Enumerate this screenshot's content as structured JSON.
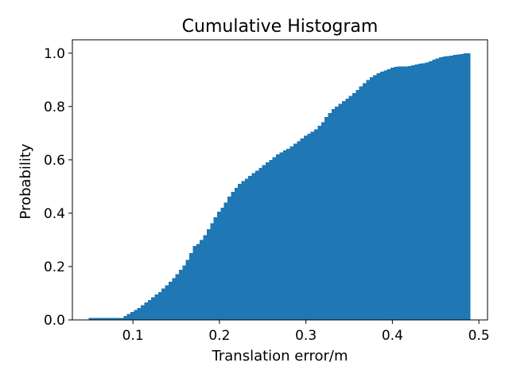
{
  "chart_data": {
    "type": "bar",
    "subtype": "cumulative-histogram",
    "title": "Cumulative Histogram",
    "xlabel": "Translation error/m",
    "ylabel": "Probability",
    "xlim": [
      0.03,
      0.51
    ],
    "ylim": [
      0.0,
      1.05
    ],
    "xticks": [
      "0.1",
      "0.2",
      "0.3",
      "0.4",
      "0.5"
    ],
    "xtick_values": [
      0.1,
      0.2,
      0.3,
      0.4,
      0.5
    ],
    "yticks": [
      "0.0",
      "0.2",
      "0.4",
      "0.6",
      "0.8",
      "1.0"
    ],
    "ytick_values": [
      0.0,
      0.2,
      0.4,
      0.6,
      0.8,
      1.0
    ],
    "bin_range": [
      0.049,
      0.49
    ],
    "grid": false,
    "legend": "none",
    "color": "#1f77b4",
    "values": [
      0.008,
      0.008,
      0.008,
      0.008,
      0.008,
      0.008,
      0.008,
      0.008,
      0.008,
      0.008,
      0.015,
      0.022,
      0.03,
      0.038,
      0.045,
      0.055,
      0.065,
      0.075,
      0.085,
      0.095,
      0.105,
      0.118,
      0.13,
      0.143,
      0.157,
      0.172,
      0.188,
      0.205,
      0.225,
      0.25,
      0.278,
      0.285,
      0.3,
      0.318,
      0.34,
      0.362,
      0.385,
      0.405,
      0.42,
      0.44,
      0.462,
      0.48,
      0.495,
      0.51,
      0.52,
      0.53,
      0.54,
      0.55,
      0.56,
      0.57,
      0.58,
      0.59,
      0.6,
      0.61,
      0.62,
      0.628,
      0.635,
      0.642,
      0.65,
      0.66,
      0.67,
      0.68,
      0.69,
      0.698,
      0.705,
      0.715,
      0.728,
      0.742,
      0.76,
      0.775,
      0.79,
      0.8,
      0.81,
      0.82,
      0.83,
      0.84,
      0.85,
      0.862,
      0.875,
      0.888,
      0.9,
      0.91,
      0.918,
      0.925,
      0.93,
      0.935,
      0.94,
      0.945,
      0.948,
      0.95,
      0.95,
      0.95,
      0.952,
      0.955,
      0.958,
      0.96,
      0.962,
      0.965,
      0.97,
      0.975,
      0.98,
      0.985,
      0.987,
      0.989,
      0.991,
      0.993,
      0.995,
      0.997,
      0.999,
      1.0
    ]
  }
}
